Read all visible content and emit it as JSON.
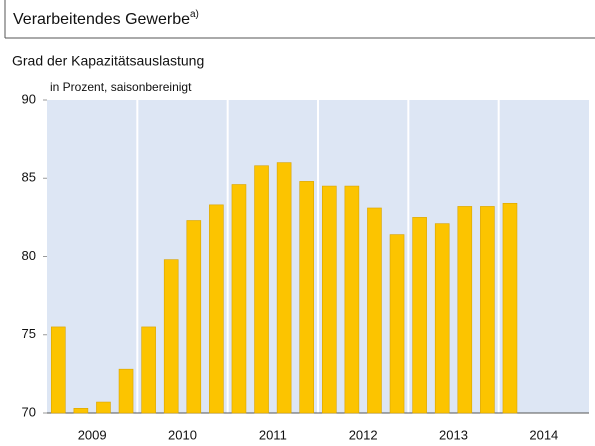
{
  "chart_data": {
    "type": "bar",
    "title": "Verarbeitendes Gewerbe",
    "title_note": "a)",
    "subtitle": "Grad der Kapazitätsauslastung",
    "y_label": "in Prozent, saisonbereinigt",
    "groups": [
      "2009",
      "2010",
      "2011",
      "2012",
      "2013",
      "2014"
    ],
    "categories": [
      null,
      null,
      null,
      null,
      null,
      null,
      null,
      null,
      null,
      null,
      null,
      null,
      null,
      null,
      null,
      null,
      null,
      null,
      null,
      null,
      null,
      null,
      null,
      null
    ],
    "values": [
      75.5,
      70.3,
      70.7,
      72.8,
      75.5,
      79.8,
      82.3,
      83.3,
      84.6,
      85.8,
      86.0,
      84.8,
      84.5,
      84.5,
      83.1,
      81.4,
      82.5,
      82.1,
      83.2,
      83.2,
      83.4,
      null,
      null,
      null
    ],
    "color": "#fcc400",
    "background": "#dde6f4",
    "ylim": [
      70,
      90
    ],
    "yticks": [
      70,
      75,
      80,
      85,
      90
    ],
    "grid": false
  }
}
